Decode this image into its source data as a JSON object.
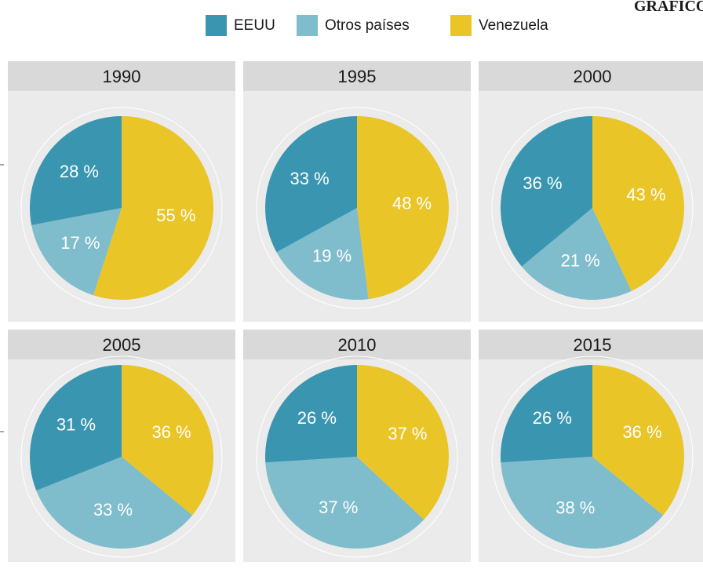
{
  "heading": "GRAFICO",
  "chart_data": [
    {
      "type": "pie",
      "title": "1990",
      "categories": [
        "EEUU",
        "Otros países",
        "Venezuela"
      ],
      "colors": [
        "#3a96b0",
        "#7fbccc",
        "#eac528"
      ],
      "values": [
        28,
        17,
        55
      ],
      "value_labels": [
        "28 %",
        "17 %",
        "55 %"
      ]
    },
    {
      "type": "pie",
      "title": "1995",
      "categories": [
        "EEUU",
        "Otros países",
        "Venezuela"
      ],
      "colors": [
        "#3a96b0",
        "#7fbccc",
        "#eac528"
      ],
      "values": [
        33,
        19,
        48
      ],
      "value_labels": [
        "33 %",
        "19 %",
        "48 %"
      ]
    },
    {
      "type": "pie",
      "title": "2000",
      "categories": [
        "EEUU",
        "Otros países",
        "Venezuela"
      ],
      "colors": [
        "#3a96b0",
        "#7fbccc",
        "#eac528"
      ],
      "values": [
        36,
        21,
        43
      ],
      "value_labels": [
        "36 %",
        "21 %",
        "43 %"
      ]
    },
    {
      "type": "pie",
      "title": "2005",
      "categories": [
        "EEUU",
        "Otros países",
        "Venezuela"
      ],
      "colors": [
        "#3a96b0",
        "#7fbccc",
        "#eac528"
      ],
      "values": [
        31,
        33,
        36
      ],
      "value_labels": [
        "31 %",
        "33 %",
        "36 %"
      ]
    },
    {
      "type": "pie",
      "title": "2010",
      "categories": [
        "EEUU",
        "Otros países",
        "Venezuela"
      ],
      "colors": [
        "#3a96b0",
        "#7fbccc",
        "#eac528"
      ],
      "values": [
        26,
        37,
        37
      ],
      "value_labels": [
        "26 %",
        "37 %",
        "37 %"
      ]
    },
    {
      "type": "pie",
      "title": "2015",
      "categories": [
        "EEUU",
        "Otros países",
        "Venezuela"
      ],
      "colors": [
        "#3a96b0",
        "#7fbccc",
        "#eac528"
      ],
      "values": [
        26,
        38,
        36
      ],
      "value_labels": [
        "26 %",
        "38 %",
        "36 %"
      ]
    }
  ]
}
